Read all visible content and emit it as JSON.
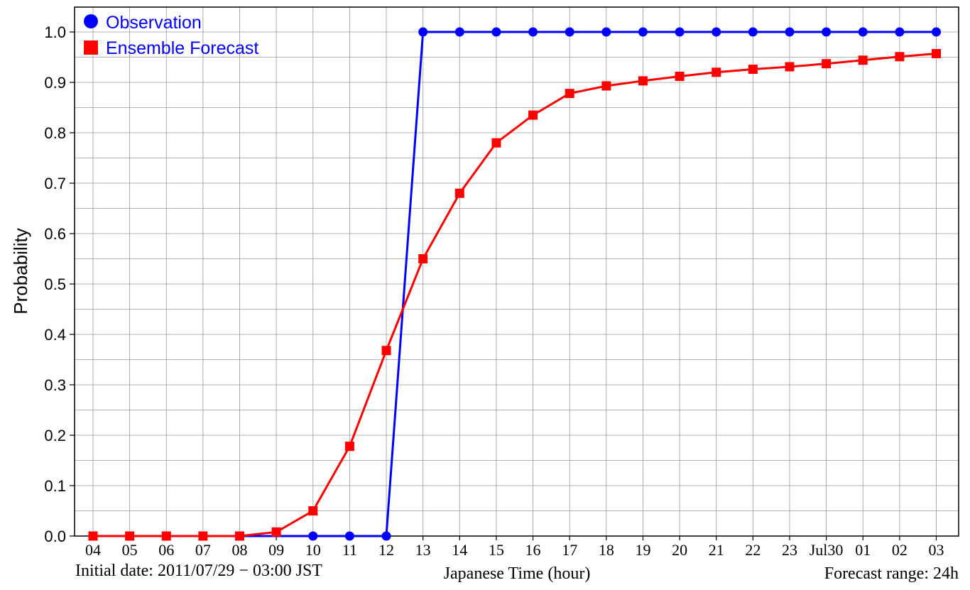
{
  "chart_data": {
    "type": "line",
    "ylabel": "Probability",
    "xlabel": "Japanese Time (hour)",
    "ylim": [
      0.0,
      1.0
    ],
    "yticks": [
      "0.0",
      "0.1",
      "0.2",
      "0.3",
      "0.4",
      "0.5",
      "0.6",
      "0.7",
      "0.8",
      "0.9",
      "1.0"
    ],
    "categories": [
      "04",
      "05",
      "06",
      "07",
      "08",
      "09",
      "10",
      "11",
      "12",
      "13",
      "14",
      "15",
      "16",
      "17",
      "18",
      "19",
      "20",
      "21",
      "22",
      "23",
      "Jul30",
      "01",
      "02",
      "03"
    ],
    "grid": true,
    "legend_position": "top-left",
    "series": [
      {
        "name": "Observation",
        "color": "#0000ff",
        "marker": "circle",
        "values": [
          0,
          0,
          0,
          0,
          0,
          0,
          0,
          0,
          0,
          1,
          1,
          1,
          1,
          1,
          1,
          1,
          1,
          1,
          1,
          1,
          1,
          1,
          1,
          1
        ],
        "shown_from_index": 6
      },
      {
        "name": "Ensemble Forecast",
        "color": "#ff0000",
        "marker": "square",
        "values": [
          0,
          0,
          0,
          0,
          0,
          0.008,
          0.05,
          0.178,
          0.368,
          0.55,
          0.68,
          0.78,
          0.835,
          0.878,
          0.893,
          0.903,
          0.912,
          0.92,
          0.926,
          0.931,
          0.937,
          0.944,
          0.951,
          0.957
        ]
      }
    ],
    "footer_left": "Initial date: 2011/07/29 − 03:00 JST",
    "footer_right": "Forecast range: 24h"
  }
}
